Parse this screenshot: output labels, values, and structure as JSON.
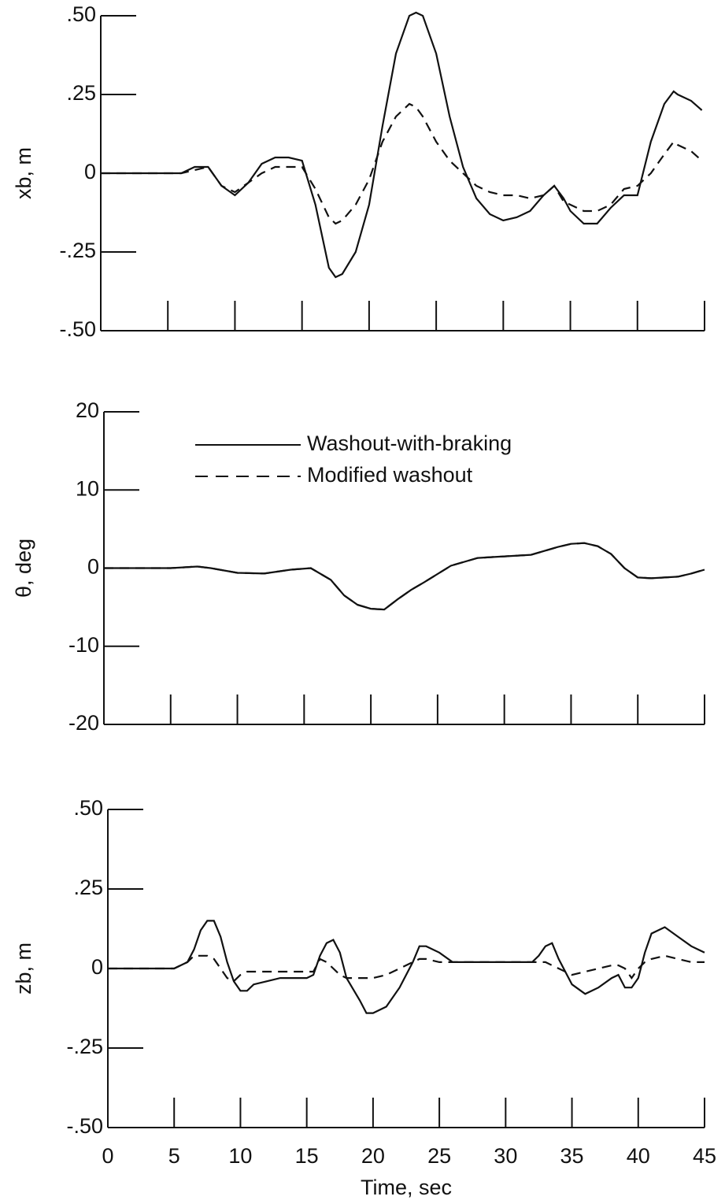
{
  "chart_data": [
    {
      "type": "line",
      "ylabel": "xb, m",
      "x": [
        0,
        5,
        6,
        7,
        8,
        9,
        10,
        11,
        12,
        13,
        14,
        15,
        16,
        17,
        17.5,
        18,
        19,
        20,
        21,
        22,
        23,
        23.5,
        24,
        25,
        26,
        27,
        28,
        29,
        30,
        31,
        32,
        33,
        33.8,
        34.5,
        35,
        36,
        37,
        38,
        39,
        40,
        41,
        42,
        42.7,
        43,
        44,
        44.8
      ],
      "series": [
        {
          "name": "Washout-with-braking",
          "color": "#111111",
          "linestyle": "solid",
          "values": [
            0,
            0,
            0,
            0.02,
            0.02,
            -0.04,
            -0.07,
            -0.03,
            0.03,
            0.05,
            0.05,
            0.04,
            -0.1,
            -0.3,
            -0.33,
            -0.32,
            -0.25,
            -0.1,
            0.15,
            0.38,
            0.5,
            0.51,
            0.5,
            0.38,
            0.18,
            0.02,
            -0.08,
            -0.13,
            -0.15,
            -0.14,
            -0.12,
            -0.07,
            -0.04,
            -0.08,
            -0.12,
            -0.16,
            -0.16,
            -0.11,
            -0.07,
            -0.07,
            0.1,
            0.22,
            0.26,
            0.25,
            0.23,
            0.2
          ]
        },
        {
          "name": "Modified washout",
          "color": "#111111",
          "linestyle": "dashed",
          "values": [
            0,
            0,
            0,
            0.01,
            0.02,
            -0.04,
            -0.06,
            -0.03,
            0,
            0.02,
            0.02,
            0.02,
            -0.05,
            -0.14,
            -0.16,
            -0.15,
            -0.1,
            -0.02,
            0.1,
            0.18,
            0.22,
            0.21,
            0.18,
            0.1,
            0.04,
            0,
            -0.04,
            -0.06,
            -0.07,
            -0.07,
            -0.08,
            -0.07,
            -0.04,
            -0.09,
            -0.1,
            -0.12,
            -0.12,
            -0.1,
            -0.05,
            -0.04,
            0,
            0.06,
            0.1,
            0.09,
            0.07,
            0.04
          ]
        }
      ],
      "xlim": [
        0,
        45
      ],
      "ylim": [
        -0.5,
        0.5
      ],
      "yticks": [
        {
          "value": -0.5,
          "label": "-.50"
        },
        {
          "value": -0.25,
          "label": "-.25"
        },
        0,
        {
          "value": 0.25,
          "label": ".25"
        },
        {
          "value": 0.5,
          "label": ".50"
        }
      ]
    },
    {
      "type": "line",
      "ylabel": "θ, deg",
      "legend": true,
      "x": [
        0,
        5,
        7,
        8,
        10,
        12,
        14,
        15.5,
        17,
        18,
        19,
        20,
        21,
        22,
        23,
        24,
        26,
        28,
        30,
        32,
        34,
        35,
        36,
        37,
        38,
        39,
        40,
        41,
        42,
        43,
        44,
        45
      ],
      "series": [
        {
          "name": "Washout-with-braking",
          "color": "#111111",
          "linestyle": "solid",
          "values": [
            0,
            0,
            0.2,
            0,
            -0.6,
            -0.7,
            -0.2,
            0,
            -1.5,
            -3.5,
            -4.7,
            -5.2,
            -5.3,
            -4,
            -2.8,
            -1.8,
            0.3,
            1.3,
            1.5,
            1.7,
            2.7,
            3.1,
            3.2,
            2.8,
            1.8,
            0,
            -1.2,
            -1.3,
            -1.2,
            -1.1,
            -0.7,
            -0.2
          ]
        },
        {
          "name": "Modified washout",
          "color": "#111111",
          "linestyle": "dashed",
          "values": [
            0,
            0,
            0.2,
            0,
            -0.6,
            -0.7,
            -0.2,
            0,
            -1.5,
            -3.5,
            -4.7,
            -5.2,
            -5.3,
            -4,
            -2.8,
            -1.8,
            0.3,
            1.3,
            1.5,
            1.7,
            2.7,
            3.1,
            3.2,
            2.8,
            1.8,
            0,
            -1.2,
            -1.3,
            -1.2,
            -1.1,
            -0.7,
            -0.2
          ]
        }
      ],
      "xlim": [
        0,
        45
      ],
      "ylim": [
        -20,
        20
      ],
      "yticks": [
        -20,
        -10,
        0,
        10,
        20
      ]
    },
    {
      "type": "line",
      "ylabel": "zb, m",
      "xlabel": "Time, sec",
      "x": [
        0,
        5,
        6,
        6.5,
        7,
        7.5,
        8,
        8.5,
        9,
        9.5,
        10,
        10.5,
        11,
        12,
        13,
        14,
        15,
        15.5,
        16,
        16.5,
        17,
        17.5,
        18,
        19,
        19.5,
        20,
        21,
        22,
        23,
        23.5,
        24,
        25,
        26,
        28,
        30,
        32,
        32.5,
        33,
        33.5,
        34,
        35,
        36,
        37,
        38,
        38.5,
        39,
        39.5,
        40,
        40.5,
        41,
        42,
        43,
        44,
        45
      ],
      "series": [
        {
          "name": "Washout-with-braking",
          "color": "#111111",
          "linestyle": "solid",
          "values": [
            0,
            0,
            0.02,
            0.06,
            0.12,
            0.15,
            0.15,
            0.1,
            0.02,
            -0.04,
            -0.07,
            -0.07,
            -0.05,
            -0.04,
            -0.03,
            -0.03,
            -0.03,
            -0.02,
            0.04,
            0.08,
            0.09,
            0.05,
            -0.03,
            -0.1,
            -0.14,
            -0.14,
            -0.12,
            -0.06,
            0.02,
            0.07,
            0.07,
            0.05,
            0.02,
            0.02,
            0.02,
            0.02,
            0.04,
            0.07,
            0.08,
            0.03,
            -0.05,
            -0.08,
            -0.06,
            -0.03,
            -0.02,
            -0.06,
            -0.06,
            -0.03,
            0.05,
            0.11,
            0.13,
            0.1,
            0.07,
            0.05
          ]
        },
        {
          "name": "Modified washout",
          "color": "#111111",
          "linestyle": "dashed",
          "values": [
            0,
            0,
            0.02,
            0.04,
            0.04,
            0.04,
            0.03,
            0,
            -0.03,
            -0.04,
            -0.02,
            -0.01,
            -0.01,
            -0.01,
            -0.01,
            -0.01,
            -0.01,
            -0.01,
            0.03,
            0.02,
            0,
            -0.02,
            -0.03,
            -0.03,
            -0.03,
            -0.03,
            -0.02,
            0,
            0.02,
            0.03,
            0.03,
            0.02,
            0.02,
            0.02,
            0.02,
            0.02,
            0.02,
            0.02,
            0.01,
            0,
            -0.02,
            -0.01,
            0,
            0.01,
            0.01,
            0,
            -0.03,
            0,
            0.02,
            0.03,
            0.04,
            0.03,
            0.02,
            0.02
          ]
        }
      ],
      "xlim": [
        0,
        45
      ],
      "xticks": [
        0,
        5,
        10,
        15,
        20,
        25,
        30,
        35,
        40,
        45
      ],
      "ylim": [
        -0.5,
        0.5
      ],
      "yticks": [
        {
          "value": -0.5,
          "label": "-.50"
        },
        {
          "value": -0.25,
          "label": "-.25"
        },
        0,
        {
          "value": 0.25,
          "label": ".25"
        },
        {
          "value": 0.5,
          "label": ".50"
        }
      ]
    }
  ]
}
